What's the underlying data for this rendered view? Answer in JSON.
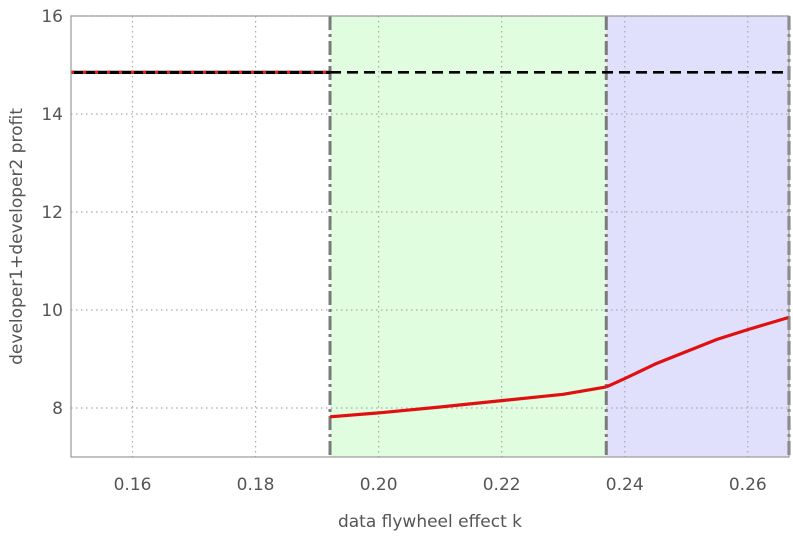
{
  "chart_data": {
    "type": "line",
    "title": "",
    "xlabel": "data flywheel effect k",
    "ylabel": "developer1+developer2 profit",
    "xlim": [
      0.15,
      0.2667
    ],
    "ylim": [
      7,
      16
    ],
    "grid": true,
    "x_ticks": [
      0.16,
      0.18,
      0.2,
      0.22,
      0.24,
      0.26
    ],
    "x_tick_labels": [
      "0.16",
      "0.18",
      "0.20",
      "0.22",
      "0.24",
      "0.26"
    ],
    "y_ticks": [
      8,
      10,
      12,
      14,
      16
    ],
    "y_tick_labels": [
      "8",
      "10",
      "12",
      "14",
      "16"
    ],
    "regions": [
      {
        "x0": 0.1921,
        "x1": 0.237,
        "color": "#e0fde0"
      },
      {
        "x0": 0.237,
        "x1": 0.2667,
        "color": "#e0e0fd"
      }
    ],
    "boundaries": [
      0.1921,
      0.237
    ],
    "series": [
      {
        "style": "black-solid",
        "color": "#000000",
        "x": [
          0.15,
          0.1921
        ],
        "y": [
          14.85,
          14.85
        ]
      },
      {
        "style": "red-dotted",
        "color": "#e02020",
        "x": [
          0.15,
          0.1921
        ],
        "y": [
          14.85,
          14.85
        ]
      },
      {
        "style": "black-dashed",
        "color": "#000000",
        "x": [
          0.1921,
          0.2667
        ],
        "y": [
          14.85,
          14.85
        ]
      },
      {
        "style": "red-solid",
        "color": "#e01010",
        "x": [
          0.1921,
          0.2,
          0.21,
          0.22,
          0.23,
          0.237
        ],
        "y": [
          7.82,
          7.9,
          8.02,
          8.15,
          8.28,
          8.43
        ]
      },
      {
        "style": "red-solid",
        "color": "#e01010",
        "x": [
          0.237,
          0.24,
          0.245,
          0.25,
          0.255,
          0.26,
          0.2667
        ],
        "y": [
          8.43,
          8.6,
          8.9,
          9.15,
          9.4,
          9.6,
          9.85
        ]
      }
    ]
  }
}
